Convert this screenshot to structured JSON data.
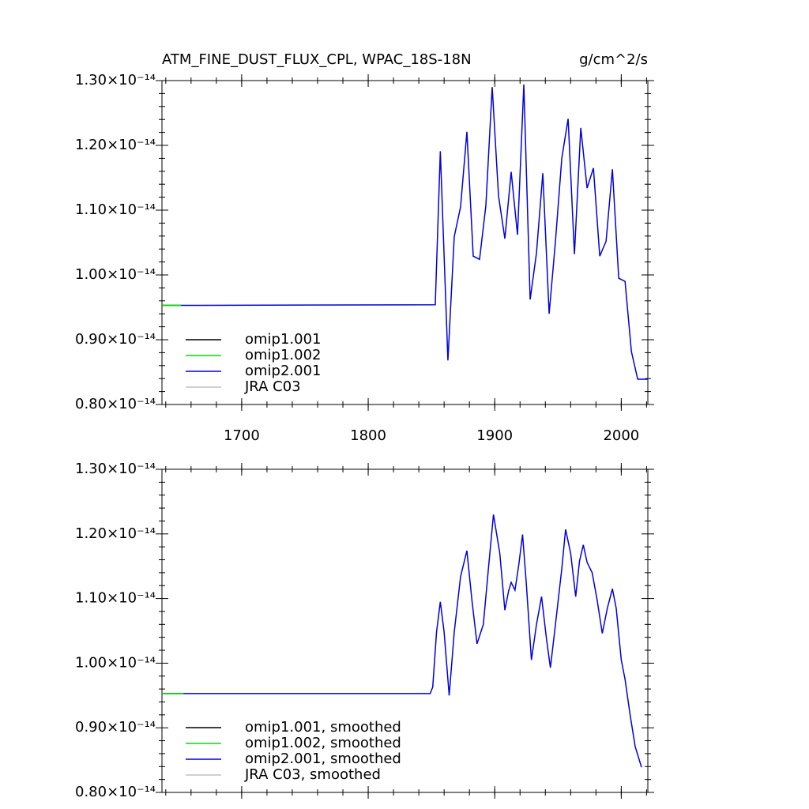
{
  "chart_data": [
    {
      "type": "line",
      "title": "ATM_FINE_DUST_FLUX_CPL, WPAC_18S-18N",
      "units": "g/cm^2/s",
      "x": [
        1637,
        1652,
        1853,
        1857,
        1863,
        1868,
        1873,
        1878,
        1883,
        1888,
        1893,
        1898,
        1903,
        1908,
        1913,
        1918,
        1923,
        1928,
        1933,
        1938,
        1943,
        1948,
        1953,
        1958,
        1963,
        1968,
        1973,
        1978,
        1983,
        1988,
        1993,
        1998,
        2003,
        2008,
        2013,
        2021
      ],
      "series": [
        {
          "name": "JRA C03",
          "color": "#c0c0c0",
          "values": [
            null,
            null,
            null,
            null,
            null,
            null,
            null,
            null,
            null,
            null,
            null,
            null,
            null,
            null,
            null,
            null,
            null,
            null,
            null,
            null,
            null,
            null,
            null,
            null,
            null,
            null,
            null,
            null,
            null,
            null,
            null,
            null,
            null,
            null,
            null,
            null
          ]
        },
        {
          "name": "omip1.001",
          "color": "#000000",
          "values": [
            9.53e-15,
            9.53e-15,
            null,
            null,
            null,
            null,
            null,
            null,
            null,
            null,
            null,
            null,
            null,
            null,
            null,
            null,
            null,
            null,
            null,
            null,
            null,
            null,
            null,
            null,
            null,
            null,
            null,
            null,
            null,
            null,
            null,
            null,
            null,
            null,
            null,
            null
          ]
        },
        {
          "name": "omip1.002",
          "color": "#00e000",
          "values": [
            9.53e-15,
            9.53e-15,
            null,
            null,
            null,
            null,
            null,
            null,
            null,
            null,
            null,
            null,
            null,
            null,
            null,
            null,
            null,
            null,
            null,
            null,
            null,
            null,
            null,
            null,
            null,
            null,
            null,
            null,
            null,
            null,
            null,
            null,
            null,
            null,
            null,
            null
          ]
        },
        {
          "name": "omip2.001",
          "color": "#0000e0",
          "values": [
            null,
            9.53e-15,
            9.54e-15,
            1.191e-14,
            8.68e-15,
            1.059e-14,
            1.105e-14,
            1.221e-14,
            1.029e-14,
            1.024e-14,
            1.107e-14,
            1.29e-14,
            1.122e-14,
            1.056e-14,
            1.159e-14,
            1.062e-14,
            1.294e-14,
            9.62e-15,
            1.034e-14,
            1.157e-14,
            9.4e-15,
            1.052e-14,
            1.18e-14,
            1.241e-14,
            1.032e-14,
            1.227e-14,
            1.134e-14,
            1.165e-14,
            1.029e-14,
            1.052e-14,
            1.163e-14,
            9.95e-15,
            9.9e-15,
            8.82e-15,
            8.39e-15,
            8.39e-15
          ]
        }
      ],
      "legend_order": [
        1,
        2,
        3,
        0
      ],
      "xlim": [
        1637,
        2021
      ],
      "xticks": [
        1700,
        1800,
        1900,
        2000
      ],
      "xtick_labels": true,
      "ylim": [
        8e-15,
        1.3e-14
      ],
      "yticks": [
        {
          "value": 8e-15,
          "label": "0.80×10⁻¹⁴"
        },
        {
          "value": 9e-15,
          "label": "0.90×10⁻¹⁴"
        },
        {
          "value": 1e-14,
          "label": "1.00×10⁻¹⁴"
        },
        {
          "value": 1.1e-14,
          "label": "1.10×10⁻¹⁴"
        },
        {
          "value": 1.2e-14,
          "label": "1.20×10⁻¹⁴"
        },
        {
          "value": 1.3e-14,
          "label": "1.30×10⁻¹⁴"
        }
      ],
      "legend": "lower left"
    },
    {
      "type": "line",
      "x": [
        1637,
        1654,
        1849,
        1851,
        1854,
        1857,
        1860,
        1864,
        1868,
        1873,
        1878,
        1882,
        1886,
        1891,
        1895,
        1899,
        1904,
        1908,
        1911,
        1913,
        1916,
        1919,
        1922,
        1925,
        1929,
        1933,
        1937,
        1941,
        1944,
        1948,
        1953,
        1956,
        1960,
        1964,
        1967,
        1970,
        1973,
        1977,
        1981,
        1985,
        1989,
        1993,
        1996,
        2000,
        2003,
        2007,
        2011,
        2016
      ],
      "series": [
        {
          "name": "JRA C03, smoothed",
          "color": "#c0c0c0",
          "values": [
            null,
            null,
            null,
            null,
            null,
            null,
            null,
            null,
            null,
            null,
            null,
            null,
            null,
            null,
            null,
            null,
            null,
            null,
            null,
            null,
            null,
            null,
            null,
            null,
            null,
            null,
            null,
            null,
            null,
            null,
            null,
            null,
            null,
            null,
            null,
            null,
            null,
            null,
            null,
            null,
            null,
            null,
            null,
            null,
            null,
            null,
            null,
            null
          ]
        },
        {
          "name": "omip1.001, smoothed",
          "color": "#000000",
          "values": [
            9.53e-15,
            9.53e-15,
            null,
            null,
            null,
            null,
            null,
            null,
            null,
            null,
            null,
            null,
            null,
            null,
            null,
            null,
            null,
            null,
            null,
            null,
            null,
            null,
            null,
            null,
            null,
            null,
            null,
            null,
            null,
            null,
            null,
            null,
            null,
            null,
            null,
            null,
            null,
            null,
            null,
            null,
            null,
            null,
            null,
            null,
            null,
            null,
            null,
            null
          ]
        },
        {
          "name": "omip1.002, smoothed",
          "color": "#00e000",
          "values": [
            9.53e-15,
            9.53e-15,
            null,
            null,
            null,
            null,
            null,
            null,
            null,
            null,
            null,
            null,
            null,
            null,
            null,
            null,
            null,
            null,
            null,
            null,
            null,
            null,
            null,
            null,
            null,
            null,
            null,
            null,
            null,
            null,
            null,
            null,
            null,
            null,
            null,
            null,
            null,
            null,
            null,
            null,
            null,
            null,
            null,
            null,
            null,
            null,
            null,
            null
          ]
        },
        {
          "name": "omip2.001, smoothed",
          "color": "#0000e0",
          "values": [
            null,
            9.53e-15,
            9.53e-15,
            9.63e-15,
            1.048e-14,
            1.095e-14,
            1.048e-14,
            9.5e-15,
            1.048e-14,
            1.134e-14,
            1.174e-14,
            1.097e-14,
            1.03e-14,
            1.06e-14,
            1.146e-14,
            1.23e-14,
            1.17e-14,
            1.082e-14,
            1.112e-14,
            1.125e-14,
            1.113e-14,
            1.152e-14,
            1.199e-14,
            1.122e-14,
            1.005e-14,
            1.06e-14,
            1.103e-14,
            1.036e-14,
            9.93e-15,
            1.06e-14,
            1.146e-14,
            1.207e-14,
            1.17e-14,
            1.103e-14,
            1.158e-14,
            1.183e-14,
            1.156e-14,
            1.14e-14,
            1.097e-14,
            1.046e-14,
            1.085e-14,
            1.115e-14,
            1.085e-14,
            1.005e-14,
            9.75e-15,
            9.2e-15,
            8.71e-15,
            8.39e-15
          ]
        }
      ],
      "legend_order": [
        1,
        2,
        3,
        0
      ],
      "xlim": [
        1637,
        2021
      ],
      "xticks": [
        1700,
        1800,
        1900,
        2000
      ],
      "xtick_labels": false,
      "ylim": [
        8e-15,
        1.3e-14
      ],
      "yticks": [
        {
          "value": 8e-15,
          "label": "0.80×10⁻¹⁴"
        },
        {
          "value": 9e-15,
          "label": "0.90×10⁻¹⁴"
        },
        {
          "value": 1e-14,
          "label": "1.00×10⁻¹⁴"
        },
        {
          "value": 1.1e-14,
          "label": "1.10×10⁻¹⁴"
        },
        {
          "value": 1.2e-14,
          "label": "1.20×10⁻¹⁴"
        },
        {
          "value": 1.3e-14,
          "label": "1.30×10⁻¹⁴"
        }
      ],
      "legend": "lower left"
    }
  ]
}
